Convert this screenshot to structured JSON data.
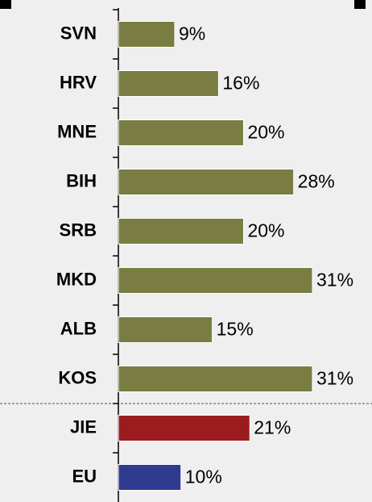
{
  "chart_data": {
    "type": "bar",
    "orientation": "horizontal",
    "categories": [
      "SVN",
      "HRV",
      "MNE",
      "BIH",
      "SRB",
      "MKD",
      "ALB",
      "KOS",
      "JIE",
      "EU"
    ],
    "values": [
      9,
      16,
      20,
      28,
      20,
      31,
      15,
      31,
      21,
      10
    ],
    "value_labels": [
      "9%",
      "16%",
      "20%",
      "28%",
      "20%",
      "31%",
      "15%",
      "31%",
      "21%",
      "10%"
    ],
    "colors": [
      "#7a7d42",
      "#7a7d42",
      "#7a7d42",
      "#7a7d42",
      "#7a7d42",
      "#7a7d42",
      "#7a7d42",
      "#7a7d42",
      "#9b1c1f",
      "#2f3b8e"
    ]
  }
}
